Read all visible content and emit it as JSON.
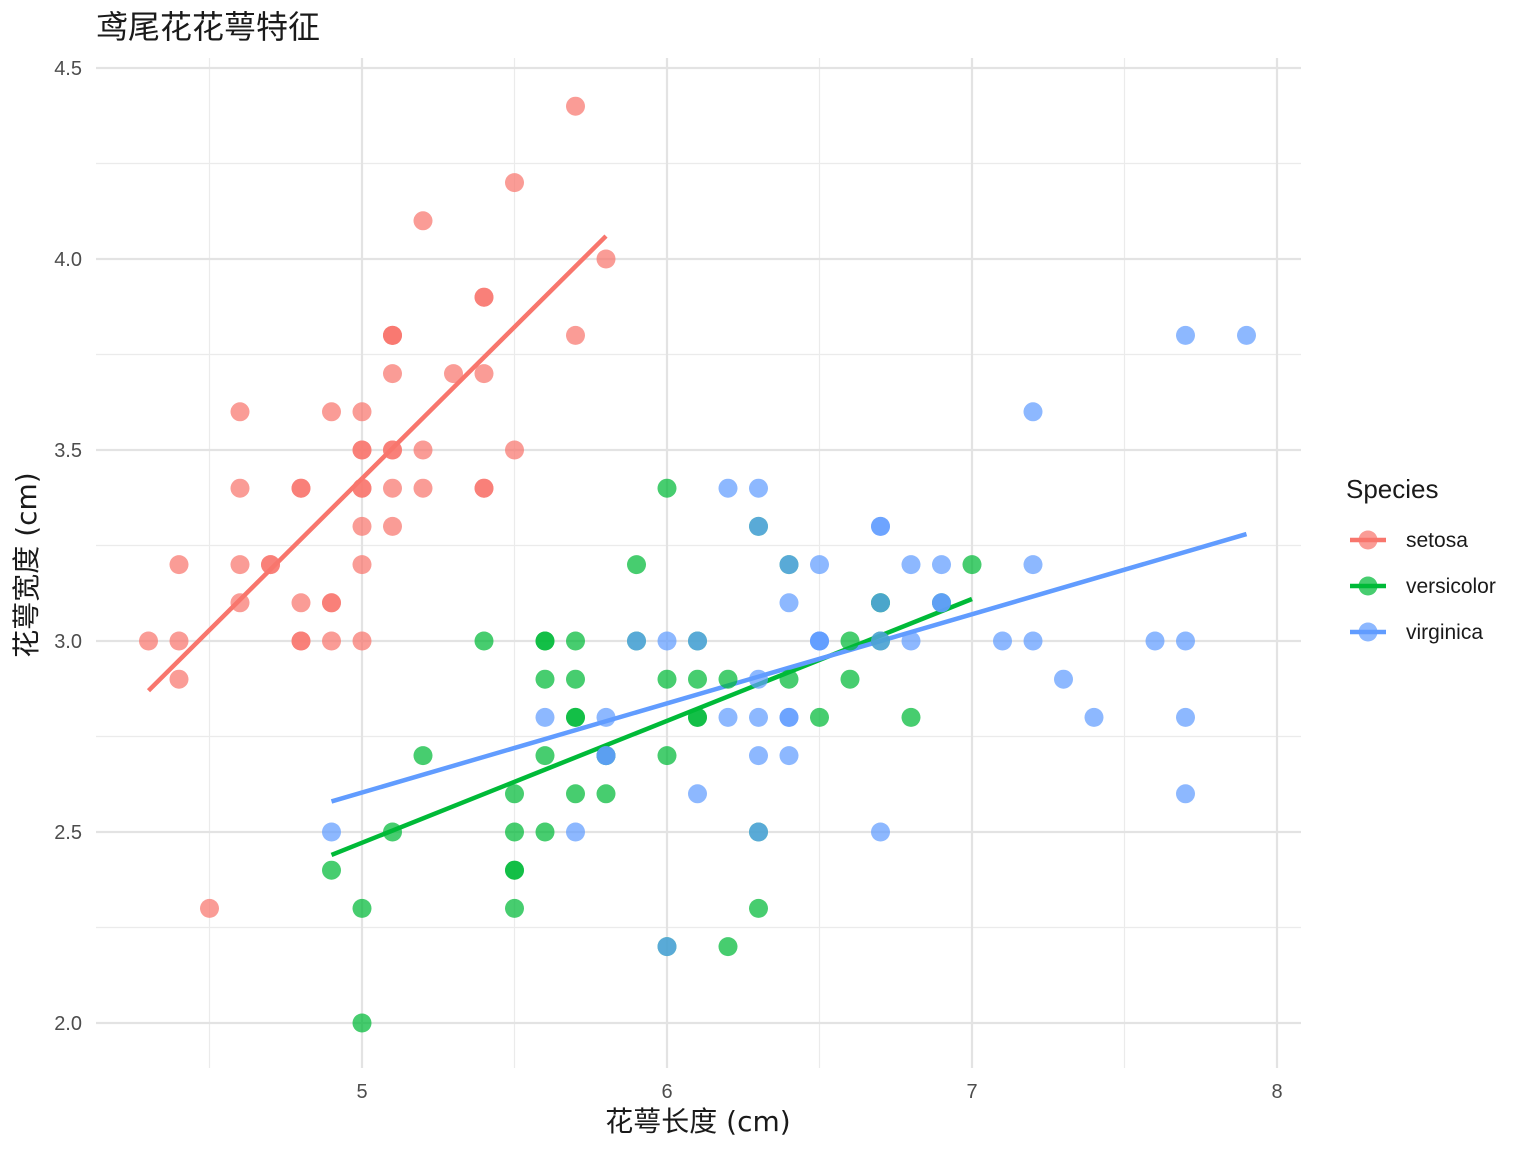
{
  "chart_data": {
    "type": "scatter",
    "title": "鸢尾花花萼特征",
    "xlabel": "花萼长度 (cm)",
    "ylabel": "花萼宽度 (cm)",
    "xlim": [
      4.2,
      8.1
    ],
    "ylim": [
      1.88,
      4.52
    ],
    "x_ticks": [
      5,
      6,
      7,
      8
    ],
    "y_ticks": [
      2.0,
      2.5,
      3.0,
      3.5,
      4.0,
      4.5
    ],
    "y_tick_labels": [
      "2.0",
      "2.5",
      "3.0",
      "3.5",
      "4.0",
      "4.5"
    ],
    "x_tick_labels": [
      "5",
      "6",
      "7",
      "8"
    ],
    "grid": true,
    "legend": {
      "title": "Species",
      "position": "right"
    },
    "series": [
      {
        "name": "setosa",
        "color": "#F8766D",
        "trend": {
          "x": [
            4.3,
            5.8
          ],
          "y": [
            2.87,
            4.06
          ]
        },
        "points": [
          [
            5.1,
            3.5
          ],
          [
            4.9,
            3.0
          ],
          [
            4.7,
            3.2
          ],
          [
            4.6,
            3.1
          ],
          [
            5.0,
            3.6
          ],
          [
            5.4,
            3.9
          ],
          [
            4.6,
            3.4
          ],
          [
            5.0,
            3.4
          ],
          [
            4.4,
            2.9
          ],
          [
            4.9,
            3.1
          ],
          [
            5.4,
            3.7
          ],
          [
            4.8,
            3.4
          ],
          [
            4.8,
            3.0
          ],
          [
            4.3,
            3.0
          ],
          [
            5.8,
            4.0
          ],
          [
            5.7,
            4.4
          ],
          [
            5.4,
            3.9
          ],
          [
            5.1,
            3.5
          ],
          [
            5.7,
            3.8
          ],
          [
            5.1,
            3.8
          ],
          [
            5.4,
            3.4
          ],
          [
            5.1,
            3.7
          ],
          [
            4.6,
            3.6
          ],
          [
            5.1,
            3.3
          ],
          [
            4.8,
            3.4
          ],
          [
            5.0,
            3.0
          ],
          [
            5.0,
            3.4
          ],
          [
            5.2,
            3.5
          ],
          [
            5.2,
            3.4
          ],
          [
            4.7,
            3.2
          ],
          [
            4.8,
            3.1
          ],
          [
            5.4,
            3.4
          ],
          [
            5.2,
            4.1
          ],
          [
            5.5,
            4.2
          ],
          [
            4.9,
            3.1
          ],
          [
            5.0,
            3.2
          ],
          [
            5.5,
            3.5
          ],
          [
            4.9,
            3.6
          ],
          [
            4.4,
            3.0
          ],
          [
            5.1,
            3.4
          ],
          [
            5.0,
            3.5
          ],
          [
            4.5,
            2.3
          ],
          [
            4.4,
            3.2
          ],
          [
            5.0,
            3.5
          ],
          [
            5.1,
            3.8
          ],
          [
            4.8,
            3.0
          ],
          [
            5.1,
            3.8
          ],
          [
            4.6,
            3.2
          ],
          [
            5.3,
            3.7
          ],
          [
            5.0,
            3.3
          ]
        ]
      },
      {
        "name": "versicolor",
        "color": "#00BA38",
        "trend": {
          "x": [
            4.9,
            7.0
          ],
          "y": [
            2.44,
            3.11
          ]
        },
        "points": [
          [
            7.0,
            3.2
          ],
          [
            6.4,
            3.2
          ],
          [
            6.9,
            3.1
          ],
          [
            5.5,
            2.3
          ],
          [
            6.5,
            2.8
          ],
          [
            5.7,
            2.8
          ],
          [
            6.3,
            3.3
          ],
          [
            4.9,
            2.4
          ],
          [
            6.6,
            2.9
          ],
          [
            5.2,
            2.7
          ],
          [
            5.0,
            2.0
          ],
          [
            5.9,
            3.0
          ],
          [
            6.0,
            2.2
          ],
          [
            6.1,
            2.9
          ],
          [
            5.6,
            2.9
          ],
          [
            6.7,
            3.1
          ],
          [
            5.6,
            3.0
          ],
          [
            5.8,
            2.7
          ],
          [
            6.2,
            2.2
          ],
          [
            5.6,
            2.5
          ],
          [
            5.9,
            3.2
          ],
          [
            6.1,
            2.8
          ],
          [
            6.3,
            2.5
          ],
          [
            6.1,
            2.8
          ],
          [
            6.4,
            2.9
          ],
          [
            6.6,
            3.0
          ],
          [
            6.8,
            2.8
          ],
          [
            6.7,
            3.0
          ],
          [
            6.0,
            2.9
          ],
          [
            5.7,
            2.6
          ],
          [
            5.5,
            2.4
          ],
          [
            5.5,
            2.4
          ],
          [
            5.8,
            2.7
          ],
          [
            6.0,
            2.7
          ],
          [
            5.4,
            3.0
          ],
          [
            6.0,
            3.4
          ],
          [
            6.7,
            3.1
          ],
          [
            6.3,
            2.3
          ],
          [
            5.6,
            3.0
          ],
          [
            5.5,
            2.5
          ],
          [
            5.5,
            2.6
          ],
          [
            6.1,
            3.0
          ],
          [
            5.8,
            2.6
          ],
          [
            5.0,
            2.3
          ],
          [
            5.6,
            2.7
          ],
          [
            5.7,
            3.0
          ],
          [
            5.7,
            2.9
          ],
          [
            6.2,
            2.9
          ],
          [
            5.1,
            2.5
          ],
          [
            5.7,
            2.8
          ]
        ]
      },
      {
        "name": "virginica",
        "color": "#619CFF",
        "trend": {
          "x": [
            4.9,
            7.9
          ],
          "y": [
            2.58,
            3.28
          ]
        },
        "points": [
          [
            6.3,
            3.3
          ],
          [
            5.8,
            2.7
          ],
          [
            7.1,
            3.0
          ],
          [
            6.3,
            2.9
          ],
          [
            6.5,
            3.0
          ],
          [
            7.6,
            3.0
          ],
          [
            4.9,
            2.5
          ],
          [
            7.3,
            2.9
          ],
          [
            6.7,
            2.5
          ],
          [
            7.2,
            3.6
          ],
          [
            6.5,
            3.2
          ],
          [
            6.4,
            2.7
          ],
          [
            6.8,
            3.0
          ],
          [
            5.7,
            2.5
          ],
          [
            5.8,
            2.8
          ],
          [
            6.4,
            3.2
          ],
          [
            6.5,
            3.0
          ],
          [
            7.7,
            3.8
          ],
          [
            7.7,
            2.6
          ],
          [
            6.0,
            2.2
          ],
          [
            6.9,
            3.2
          ],
          [
            5.6,
            2.8
          ],
          [
            7.7,
            2.8
          ],
          [
            6.3,
            2.7
          ],
          [
            6.7,
            3.3
          ],
          [
            7.2,
            3.2
          ],
          [
            6.2,
            2.8
          ],
          [
            6.1,
            3.0
          ],
          [
            6.4,
            2.8
          ],
          [
            7.2,
            3.0
          ],
          [
            7.4,
            2.8
          ],
          [
            7.9,
            3.8
          ],
          [
            6.4,
            2.8
          ],
          [
            6.3,
            2.8
          ],
          [
            6.1,
            2.6
          ],
          [
            7.7,
            3.0
          ],
          [
            6.3,
            3.4
          ],
          [
            6.4,
            3.1
          ],
          [
            6.0,
            3.0
          ],
          [
            6.9,
            3.1
          ],
          [
            6.7,
            3.1
          ],
          [
            6.9,
            3.1
          ],
          [
            5.8,
            2.7
          ],
          [
            6.8,
            3.2
          ],
          [
            6.7,
            3.3
          ],
          [
            6.7,
            3.0
          ],
          [
            6.3,
            2.5
          ],
          [
            6.5,
            3.0
          ],
          [
            6.2,
            3.4
          ],
          [
            5.9,
            3.0
          ]
        ]
      }
    ]
  }
}
